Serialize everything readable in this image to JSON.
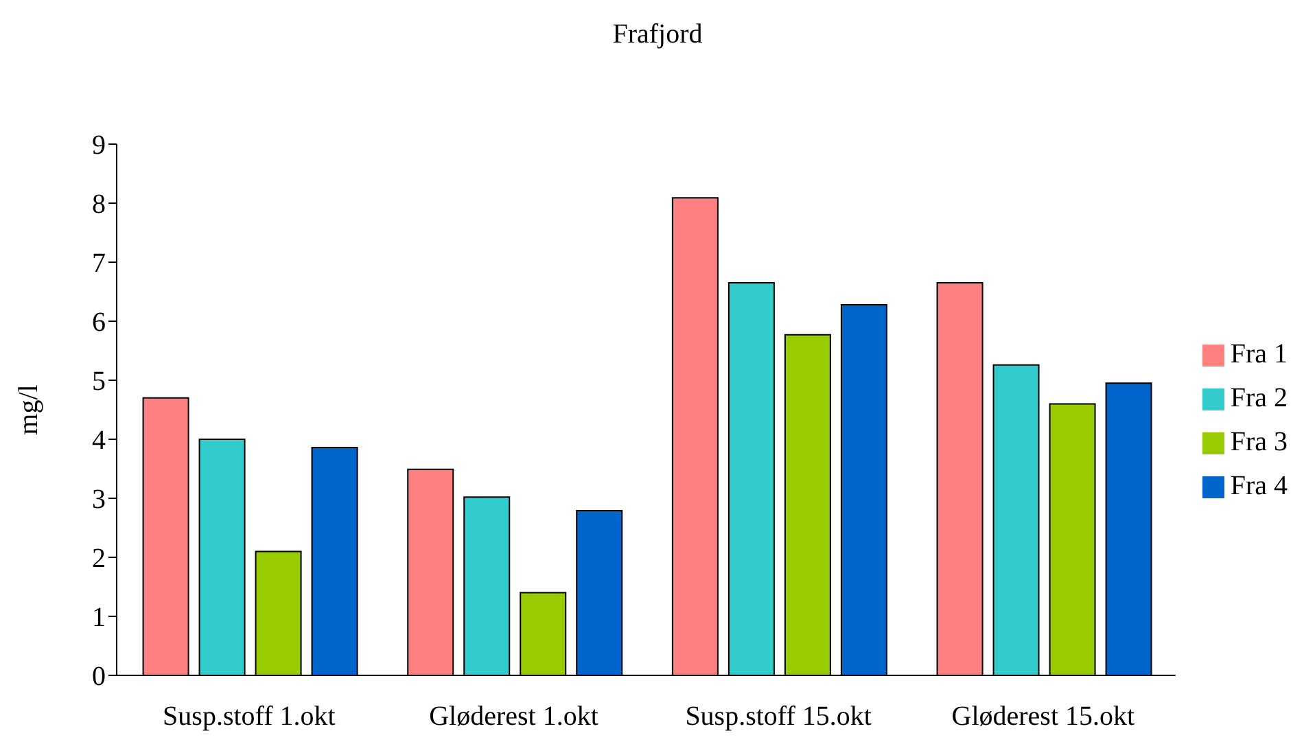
{
  "chart_data": {
    "type": "bar",
    "title": "Frafjord",
    "ylabel": "mg/l",
    "categories": [
      "Susp.stoff 1.okt",
      "Gløderest 1.okt",
      "Susp.stoff 15.okt",
      "Gløderest 15.okt"
    ],
    "series": [
      {
        "name": "Fra 1",
        "color": "#ff8080",
        "values": [
          4.7,
          3.49,
          8.09,
          6.65
        ]
      },
      {
        "name": "Fra 2",
        "color": "#33cccc",
        "values": [
          4.0,
          3.02,
          6.65,
          5.26
        ]
      },
      {
        "name": "Fra 3",
        "color": "#99cc00",
        "values": [
          2.1,
          1.4,
          5.77,
          4.6
        ]
      },
      {
        "name": "Fra 4",
        "color": "#0066cc",
        "values": [
          3.86,
          2.79,
          6.28,
          4.95
        ]
      }
    ],
    "ylim": [
      0,
      9
    ],
    "yticks": [
      0,
      1,
      2,
      3,
      4,
      5,
      6,
      7,
      8,
      9
    ],
    "grid": false,
    "legend": "right"
  }
}
